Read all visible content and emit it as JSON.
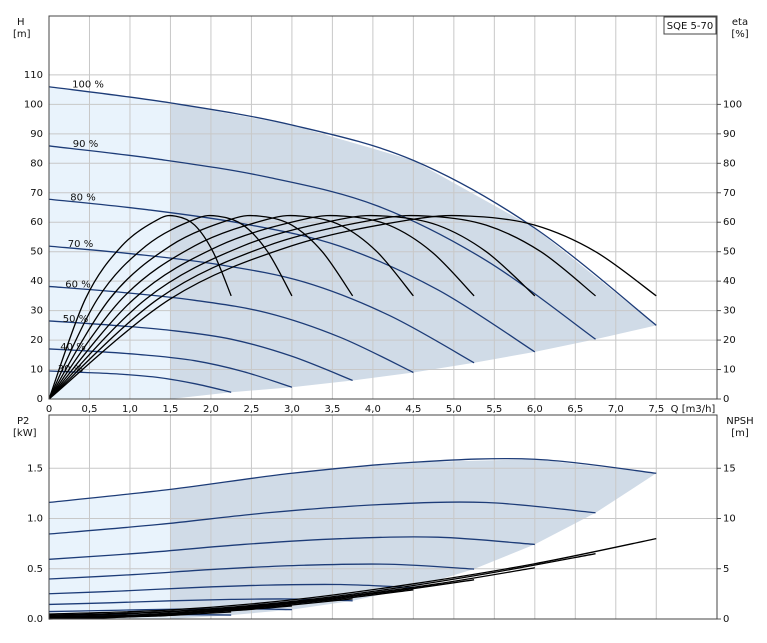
{
  "chart_data": [
    {
      "type": "line",
      "title": "SQE 5-70",
      "ylabel": "H",
      "yunit": "[m]",
      "y2label": "eta",
      "y2unit": "[%]",
      "xlabel": "Q [m3/h]",
      "xlim": [
        0,
        8.25
      ],
      "ylim": [
        0,
        130
      ],
      "y2lim": [
        0,
        130
      ],
      "xticks": [
        0,
        {
          "value": 0.5,
          "label": "0,5"
        },
        {
          "value": 1.0,
          "label": "1,0"
        },
        {
          "value": 1.5,
          "label": "1,5"
        },
        {
          "value": 2.0,
          "label": "2,0"
        },
        {
          "value": 2.5,
          "label": "2,5"
        },
        {
          "value": 3.0,
          "label": "3,0"
        },
        {
          "value": 3.5,
          "label": "3,5"
        },
        {
          "value": 4.0,
          "label": "4,0"
        },
        {
          "value": 4.5,
          "label": "4,5"
        },
        {
          "value": 5.0,
          "label": "5,0"
        },
        {
          "value": 5.5,
          "label": "5,5"
        },
        {
          "value": 6.0,
          "label": "6,0"
        },
        {
          "value": 6.5,
          "label": "6,5"
        },
        {
          "value": 7.0,
          "label": "7,0"
        },
        {
          "value": 7.5,
          "label": "7,5"
        }
      ],
      "yticks": [
        0,
        10,
        20,
        30,
        40,
        50,
        60,
        70,
        80,
        90,
        100,
        110
      ],
      "y2ticks": [
        0,
        10,
        20,
        30,
        40,
        50,
        60,
        70,
        80,
        90,
        100
      ],
      "grid": true,
      "operating_range": {
        "q_min": 1.5
      },
      "series": [
        {
          "name": "100 %",
          "color": "#1d3c78",
          "axis": "y",
          "x": [
            0,
            1.5,
            3,
            4.5,
            6,
            7.5
          ],
          "values": [
            106,
            100.5,
            93,
            81,
            58,
            25
          ]
        },
        {
          "name": "90 %",
          "color": "#1d3c78",
          "axis": "y",
          "x": [
            0,
            1.35,
            2.7,
            4.05,
            5.4,
            6.75
          ],
          "values": [
            85.9,
            81.4,
            75.3,
            65.6,
            47.0,
            20.3
          ]
        },
        {
          "name": "80 %",
          "color": "#1d3c78",
          "axis": "y",
          "x": [
            0,
            1.2,
            2.4,
            3.6,
            4.8,
            6.0
          ],
          "values": [
            67.8,
            64.3,
            59.5,
            51.8,
            37.1,
            16.0
          ]
        },
        {
          "name": "70 %",
          "color": "#1d3c78",
          "axis": "y",
          "x": [
            0,
            1.05,
            2.1,
            3.15,
            4.2,
            5.25
          ],
          "values": [
            51.9,
            49.2,
            45.6,
            39.7,
            28.4,
            12.3
          ]
        },
        {
          "name": "60 %",
          "color": "#1d3c78",
          "axis": "y",
          "x": [
            0,
            0.9,
            1.8,
            2.7,
            3.6,
            4.5
          ],
          "values": [
            38.2,
            36.2,
            33.5,
            29.2,
            20.9,
            9.0
          ]
        },
        {
          "name": "50 %",
          "color": "#1d3c78",
          "axis": "y",
          "x": [
            0,
            0.75,
            1.5,
            2.25,
            3.0,
            3.75
          ],
          "values": [
            26.5,
            25.1,
            23.3,
            20.3,
            14.5,
            6.3
          ]
        },
        {
          "name": "40 %",
          "color": "#1d3c78",
          "axis": "y",
          "x": [
            0,
            0.6,
            1.2,
            1.8,
            2.4,
            3.0
          ],
          "values": [
            17.0,
            16.1,
            14.9,
            13.0,
            9.3,
            4.0
          ]
        },
        {
          "name": "30 %",
          "color": "#1d3c78",
          "axis": "y",
          "x": [
            0,
            0.45,
            0.9,
            1.35,
            1.8,
            2.25
          ],
          "values": [
            9.5,
            9.0,
            8.4,
            7.3,
            5.2,
            2.3
          ]
        },
        {
          "color": "#000000",
          "axis": "y2",
          "x": [
            0,
            1.5,
            3,
            4.5,
            5.25,
            6,
            6.75,
            7.5
          ],
          "values": [
            0,
            34,
            52,
            61,
            62,
            59,
            50,
            35
          ]
        },
        {
          "color": "#000000",
          "axis": "y2",
          "x": [
            0,
            1.35,
            2.7,
            4.05,
            4.725,
            5.4,
            6.075,
            6.75
          ],
          "values": [
            0,
            34,
            52,
            61,
            62,
            59,
            50,
            35
          ]
        },
        {
          "color": "#000000",
          "axis": "y2",
          "x": [
            0,
            1.2,
            2.4,
            3.6,
            4.2,
            4.8,
            5.4,
            6.0
          ],
          "values": [
            0,
            34,
            52,
            61,
            62,
            59,
            50,
            35
          ]
        },
        {
          "color": "#000000",
          "axis": "y2",
          "x": [
            0,
            1.05,
            2.1,
            3.15,
            3.675,
            4.2,
            4.725,
            5.25
          ],
          "values": [
            0,
            34,
            52,
            61,
            62,
            59,
            50,
            35
          ]
        },
        {
          "color": "#000000",
          "axis": "y2",
          "x": [
            0,
            0.9,
            1.8,
            2.7,
            3.15,
            3.6,
            4.05,
            4.5
          ],
          "values": [
            0,
            34,
            52,
            61,
            62,
            59,
            50,
            35
          ]
        },
        {
          "color": "#000000",
          "axis": "y2",
          "x": [
            0,
            0.75,
            1.5,
            2.25,
            2.625,
            3.0,
            3.375,
            3.75
          ],
          "values": [
            0,
            34,
            52,
            61,
            62,
            59,
            50,
            35
          ]
        },
        {
          "color": "#000000",
          "axis": "y2",
          "x": [
            0,
            0.6,
            1.2,
            1.8,
            2.1,
            2.4,
            2.7,
            3.0
          ],
          "values": [
            0,
            34,
            52,
            61,
            62,
            59,
            50,
            35
          ]
        },
        {
          "color": "#000000",
          "axis": "y2",
          "x": [
            0,
            0.45,
            0.9,
            1.35,
            1.575,
            1.8,
            2.025,
            2.25
          ],
          "values": [
            0,
            34,
            52,
            61,
            62,
            59,
            50,
            35
          ]
        }
      ]
    },
    {
      "type": "line",
      "ylabel": "P2",
      "yunit": "[kW]",
      "y2label": "NPSH",
      "y2unit": "[m]",
      "xlim": [
        0,
        8.25
      ],
      "ylim": [
        0,
        2.03
      ],
      "y2lim": [
        0,
        20.3
      ],
      "xticks": [
        0,
        0.5,
        1.0,
        1.5,
        2.0,
        2.5,
        3.0,
        3.5,
        4.0,
        4.5,
        5.0,
        5.5,
        6.0,
        6.5,
        7.0,
        7.5
      ],
      "show_xtick_labels": false,
      "yticks": [
        {
          "value": 0,
          "label": "0.0"
        },
        {
          "value": 0.5,
          "label": "0.5"
        },
        {
          "value": 1.0,
          "label": "1.0"
        },
        {
          "value": 1.5,
          "label": "1.5"
        }
      ],
      "y2ticks": [
        0,
        5,
        10,
        15
      ],
      "grid": true,
      "operating_range": {
        "q_min": 1.5
      },
      "series": [
        {
          "color": "#1d3c78",
          "axis": "y",
          "x": [
            0,
            1.5,
            3,
            4.5,
            6,
            7.5
          ],
          "values": [
            1.16,
            1.29,
            1.45,
            1.56,
            1.59,
            1.45
          ]
        },
        {
          "color": "#1d3c78",
          "axis": "y",
          "x": [
            0,
            1.35,
            2.7,
            4.05,
            5.4,
            6.75
          ],
          "values": [
            0.846,
            0.94,
            1.057,
            1.137,
            1.159,
            1.057
          ]
        },
        {
          "color": "#1d3c78",
          "axis": "y",
          "x": [
            0,
            1.2,
            2.4,
            3.6,
            4.8,
            6.0
          ],
          "values": [
            0.594,
            0.66,
            0.742,
            0.799,
            0.814,
            0.742
          ]
        },
        {
          "color": "#1d3c78",
          "axis": "y",
          "x": [
            0,
            1.05,
            2.1,
            3.15,
            4.2,
            5.25
          ],
          "values": [
            0.398,
            0.442,
            0.497,
            0.535,
            0.545,
            0.497
          ]
        },
        {
          "color": "#1d3c78",
          "axis": "y",
          "x": [
            0,
            0.9,
            1.8,
            2.7,
            3.6,
            4.5
          ],
          "values": [
            0.251,
            0.279,
            0.313,
            0.337,
            0.343,
            0.313
          ]
        },
        {
          "color": "#1d3c78",
          "axis": "y",
          "x": [
            0,
            0.75,
            1.5,
            2.25,
            3.0,
            3.75
          ],
          "values": [
            0.145,
            0.161,
            0.181,
            0.195,
            0.199,
            0.181
          ]
        },
        {
          "color": "#1d3c78",
          "axis": "y",
          "x": [
            0,
            0.6,
            1.2,
            1.8,
            2.4,
            3.0
          ],
          "values": [
            0.074,
            0.083,
            0.093,
            0.1,
            0.102,
            0.093
          ]
        },
        {
          "color": "#1d3c78",
          "axis": "y",
          "x": [
            0,
            0.45,
            0.9,
            1.35,
            1.8,
            2.25
          ],
          "values": [
            0.031,
            0.035,
            0.039,
            0.042,
            0.043,
            0.039
          ]
        },
        {
          "color": "#000000",
          "axis": "y2",
          "x": [
            0,
            1.5,
            3,
            4.5,
            6,
            7.5
          ],
          "values": [
            0.5,
            0.9,
            1.9,
            3.5,
            5.5,
            8
          ]
        },
        {
          "color": "#000000",
          "axis": "y2",
          "x": [
            0,
            1.35,
            2.7,
            4.05,
            5.4,
            6.75
          ],
          "values": [
            0.4,
            0.7,
            1.5,
            2.8,
            4.5,
            6.5
          ]
        },
        {
          "color": "#000000",
          "axis": "y2",
          "x": [
            0,
            1.2,
            2.4,
            3.6,
            4.8,
            6.0
          ],
          "values": [
            0.3,
            0.6,
            1.2,
            2.2,
            3.5,
            5.1
          ]
        },
        {
          "color": "#000000",
          "axis": "y2",
          "x": [
            0,
            1.05,
            2.1,
            3.15,
            4.2,
            5.25
          ],
          "values": [
            0.2,
            0.4,
            0.9,
            1.7,
            2.7,
            3.9
          ]
        },
        {
          "color": "#000000",
          "axis": "y2",
          "x": [
            0,
            0.9,
            1.8,
            2.7,
            3.6,
            4.5
          ],
          "values": [
            0.2,
            0.3,
            0.7,
            1.3,
            2.0,
            2.9
          ]
        },
        {
          "color": "#000000",
          "axis": "y2",
          "x": [
            0,
            0.75,
            1.5,
            2.25,
            3.0,
            3.75
          ],
          "values": [
            0.1,
            0.2,
            0.5,
            0.9,
            1.4,
            2.0
          ]
        },
        {
          "color": "#000000",
          "axis": "y2",
          "x": [
            0,
            0.6,
            1.2,
            1.8,
            2.4,
            3.0
          ],
          "values": [
            0.1,
            0.1,
            0.3,
            0.6,
            0.9,
            1.3
          ]
        },
        {
          "color": "#000000",
          "axis": "y2",
          "x": [
            0,
            0.45,
            0.9,
            1.35,
            1.8,
            2.25
          ],
          "values": [
            0,
            0.1,
            0.2,
            0.3,
            0.5,
            0.7
          ]
        }
      ]
    }
  ]
}
